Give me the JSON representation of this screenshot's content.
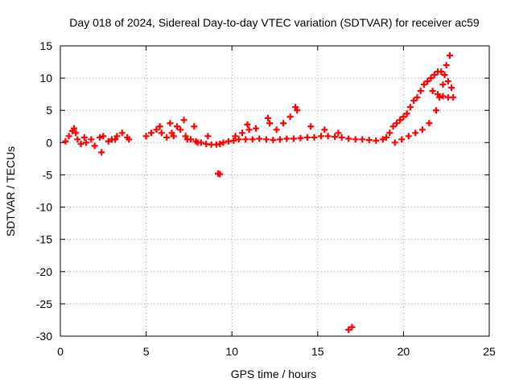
{
  "chart_data": {
    "type": "scatter",
    "title": "Day 018 of 2024, Sidereal Day-to-day VTEC variation (SDTVAR) for receiver ac59",
    "xlabel": "GPS time / hours",
    "ylabel": "SDTVAR / TECUs",
    "xlim": [
      0,
      25
    ],
    "ylim": [
      -30,
      15
    ],
    "xticks": [
      0,
      5,
      10,
      15,
      20,
      25
    ],
    "yticks": [
      -30,
      -25,
      -20,
      -15,
      -10,
      -5,
      0,
      5,
      10,
      15
    ],
    "grid": true,
    "legend": "none",
    "marker": "plus",
    "color": "#ff0000",
    "series": [
      {
        "name": "SDTVAR",
        "x": [
          0.3,
          0.5,
          0.7,
          0.8,
          1.0,
          1.2,
          1.5,
          1.8,
          2.0,
          2.3,
          2.5,
          2.8,
          3.0,
          3.3,
          3.6,
          3.9,
          4.0,
          5.0,
          5.3,
          5.6,
          5.9,
          6.2,
          6.5,
          6.8,
          7.0,
          7.3,
          7.6,
          7.9,
          8.2,
          8.5,
          8.8,
          9.1,
          9.3,
          9.5,
          9.8,
          10.1,
          10.4,
          10.8,
          11.2,
          11.6,
          12.0,
          12.4,
          12.8,
          13.2,
          13.6,
          14.0,
          14.4,
          14.8,
          15.2,
          15.6,
          16.0,
          16.4,
          16.8,
          17.2,
          17.6,
          18.0,
          18.4,
          18.8,
          19.0,
          19.2,
          19.4,
          19.6,
          19.8,
          20.0,
          20.2,
          20.4,
          20.6,
          20.8,
          21.0,
          21.2,
          21.4,
          21.6,
          21.8,
          22.0,
          22.2,
          22.4,
          22.6,
          22.8,
          0.9,
          1.4,
          2.4,
          3.2,
          5.8,
          6.4,
          7.2,
          7.8,
          8.6,
          10.2,
          10.6,
          11.0,
          11.4,
          12.2,
          12.6,
          13.0,
          13.4,
          13.8,
          14.6,
          15.4,
          16.2,
          19.5,
          19.9,
          20.3,
          20.7,
          21.1,
          21.5,
          21.9,
          22.1,
          22.3,
          22.5,
          22.7,
          6.6,
          7.4,
          8.0,
          9.2,
          9.3,
          16.8,
          17.0,
          21.7,
          22.0,
          22.3,
          22.6,
          22.9,
          13.7,
          12.1,
          10.9
        ],
        "y": [
          0.2,
          1.0,
          1.8,
          2.2,
          0.5,
          -0.2,
          0.0,
          0.5,
          -0.5,
          0.8,
          1.0,
          0.2,
          0.5,
          1.0,
          1.5,
          0.8,
          0.5,
          1.0,
          1.5,
          2.0,
          1.5,
          0.8,
          1.5,
          2.5,
          2.0,
          1.0,
          0.5,
          0.2,
          0.0,
          -0.2,
          -0.3,
          -0.3,
          -0.2,
          0.0,
          0.2,
          0.3,
          0.5,
          0.5,
          0.5,
          0.6,
          0.5,
          0.4,
          0.5,
          0.6,
          0.6,
          0.7,
          0.8,
          0.8,
          1.0,
          1.0,
          0.9,
          0.8,
          0.6,
          0.5,
          0.5,
          0.4,
          0.3,
          0.5,
          0.8,
          1.5,
          2.5,
          3.0,
          3.5,
          4.0,
          4.5,
          5.5,
          6.5,
          7.0,
          8.0,
          9.0,
          9.5,
          10.0,
          10.5,
          11.0,
          11.0,
          10.5,
          9.5,
          8.5,
          1.5,
          0.8,
          -1.5,
          0.5,
          2.5,
          3.0,
          3.5,
          2.5,
          1.0,
          1.0,
          1.5,
          2.0,
          2.2,
          3.0,
          2.0,
          3.0,
          4.0,
          5.0,
          2.5,
          2.0,
          1.5,
          0.0,
          0.5,
          1.0,
          1.5,
          2.0,
          3.0,
          5.0,
          7.0,
          9.0,
          12.0,
          13.5,
          1.0,
          0.5,
          0.0,
          -4.8,
          -4.9,
          -29.0,
          -28.6,
          8.0,
          7.5,
          7.2,
          7.0,
          7.0,
          5.5,
          3.8,
          2.8
        ]
      }
    ]
  }
}
